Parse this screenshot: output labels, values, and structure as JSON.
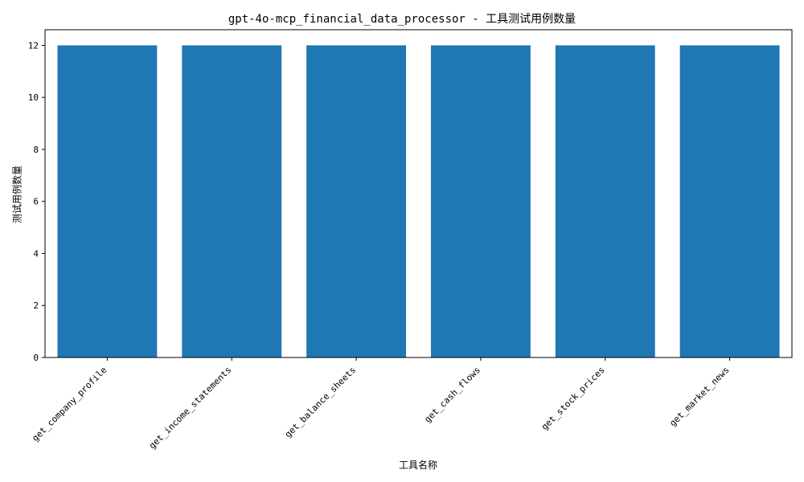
{
  "chart_data": {
    "type": "bar",
    "title": "gpt-4o-mcp_financial_data_processor - 工具测试用例数量",
    "xlabel": "工具名称",
    "ylabel": "测试用例数量",
    "categories": [
      "get_company_profile",
      "get_income_statements",
      "get_balance_sheets",
      "get_cash_flows",
      "get_stock_prices",
      "get_market_news"
    ],
    "values": [
      12,
      12,
      12,
      12,
      12,
      12
    ],
    "ylim": [
      0,
      12.6
    ],
    "yticks": [
      0,
      2,
      4,
      6,
      8,
      10,
      12
    ],
    "grid": false,
    "bar_color": "#1f77b4"
  }
}
